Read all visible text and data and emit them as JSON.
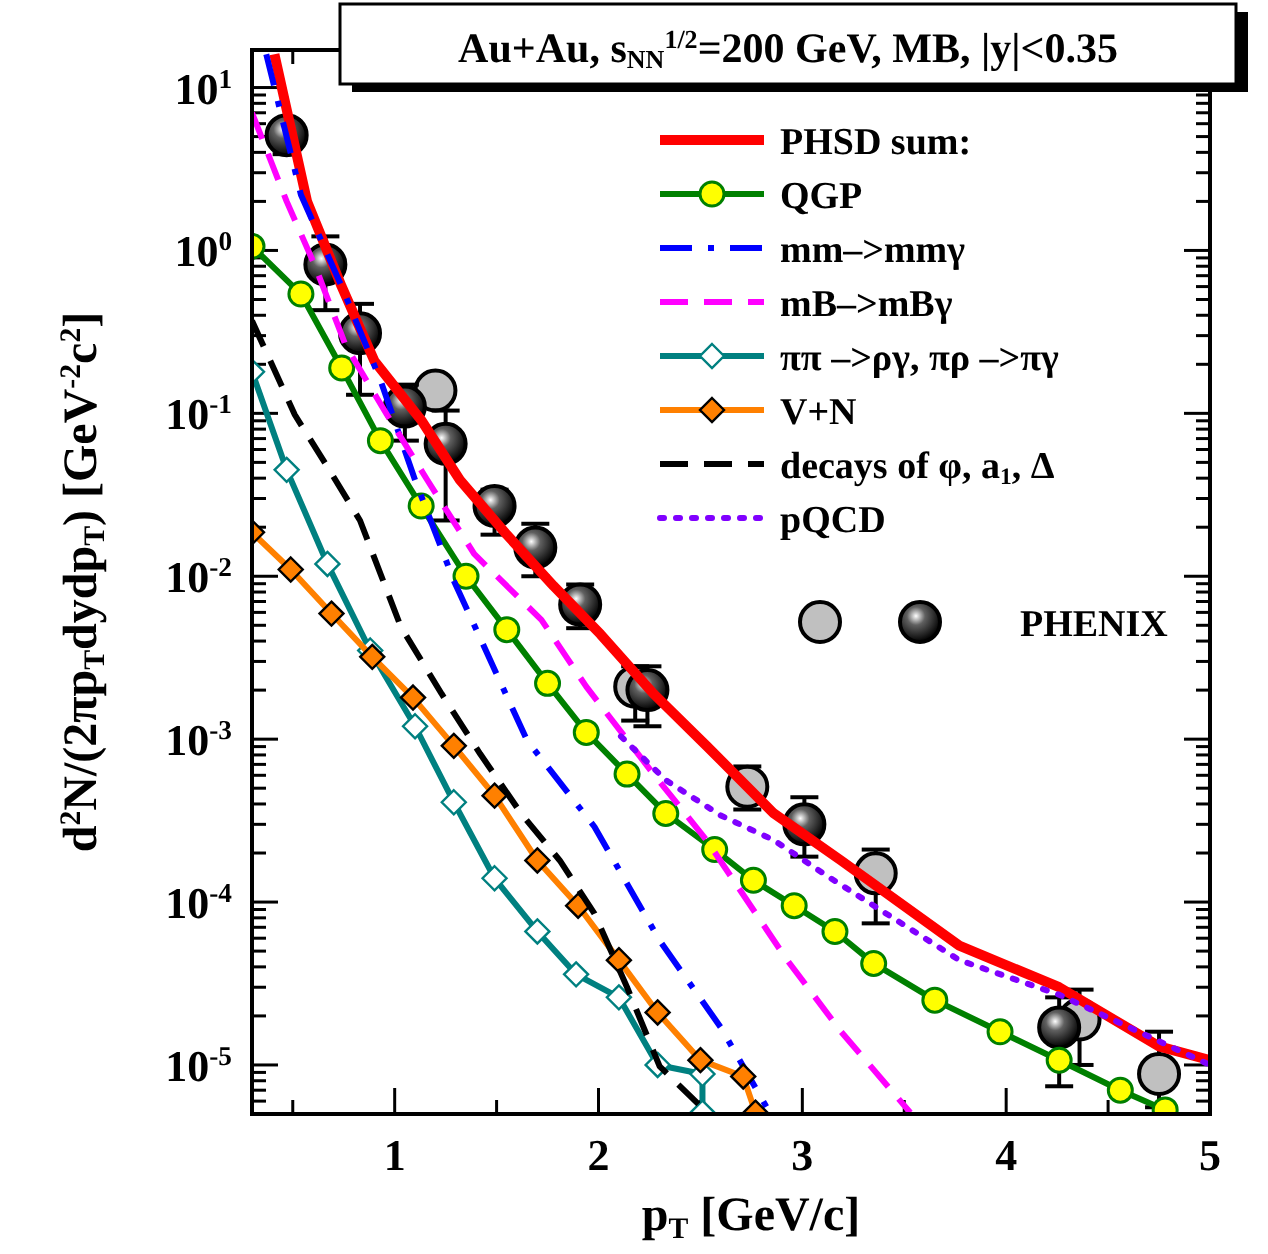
{
  "chart_data": {
    "type": "line",
    "title": "Au+Au, s$_{NN}$$^{1/2}$=200 GeV, MB, |y|<0.35",
    "xlabel": "p$_{T}$ [GeV/c]",
    "ylabel": "d$^{2}$N/(2πp$_{T}$dydp$_{T}$)  [GeV$^{-2}$c$^{2}$]",
    "log": "y",
    "legend": "top right",
    "xlim": [
      0.3,
      5.0
    ],
    "xticks": [
      {
        "value": 0.5,
        "label": null
      },
      1,
      {
        "value": 1.5,
        "label": null
      },
      2,
      {
        "value": 2.5,
        "label": null
      },
      3,
      {
        "value": 3.5,
        "label": null
      },
      4,
      {
        "value": 4.5,
        "label": null
      },
      5
    ],
    "ylim": [
      5e-06,
      17
    ],
    "yticks": [
      {
        "value": 6e-06,
        "label": null
      },
      {
        "value": 7e-06,
        "label": null
      },
      {
        "value": 8e-06,
        "label": null
      },
      {
        "value": 9e-06,
        "label": null
      },
      {
        "value": 1e-05,
        "label": "10$^{-5}$"
      },
      {
        "value": 2e-05,
        "label": null
      },
      {
        "value": 3e-05,
        "label": null
      },
      {
        "value": 4e-05,
        "label": null
      },
      {
        "value": 5e-05,
        "label": null
      },
      {
        "value": 6e-05,
        "label": null
      },
      {
        "value": 7e-05,
        "label": null
      },
      {
        "value": 8e-05,
        "label": null
      },
      {
        "value": 9e-05,
        "label": null
      },
      {
        "value": 0.0001,
        "label": "10$^{-4}$"
      },
      {
        "value": 0.0002,
        "label": null
      },
      {
        "value": 0.0003,
        "label": null
      },
      {
        "value": 0.0004,
        "label": null
      },
      {
        "value": 0.0005,
        "label": null
      },
      {
        "value": 0.0006,
        "label": null
      },
      {
        "value": 0.0007,
        "label": null
      },
      {
        "value": 0.0008,
        "label": null
      },
      {
        "value": 0.0009,
        "label": null
      },
      {
        "value": 0.001,
        "label": "10$^{-3}$"
      },
      {
        "value": 0.002,
        "label": null
      },
      {
        "value": 0.003,
        "label": null
      },
      {
        "value": 0.004,
        "label": null
      },
      {
        "value": 0.005,
        "label": null
      },
      {
        "value": 0.006,
        "label": null
      },
      {
        "value": 0.007,
        "label": null
      },
      {
        "value": 0.008,
        "label": null
      },
      {
        "value": 0.009,
        "label": null
      },
      {
        "value": 0.01,
        "label": "10$^{-2}$"
      },
      {
        "value": 0.02,
        "label": null
      },
      {
        "value": 0.03,
        "label": null
      },
      {
        "value": 0.04,
        "label": null
      },
      {
        "value": 0.05,
        "label": null
      },
      {
        "value": 0.06,
        "label": null
      },
      {
        "value": 0.07,
        "label": null
      },
      {
        "value": 0.08,
        "label": null
      },
      {
        "value": 0.09,
        "label": null
      },
      {
        "value": 0.1,
        "label": "10$^{-1}$"
      },
      {
        "value": 0.2,
        "label": null
      },
      {
        "value": 0.3,
        "label": null
      },
      {
        "value": 0.4,
        "label": null
      },
      {
        "value": 0.5,
        "label": null
      },
      {
        "value": 0.6,
        "label": null
      },
      {
        "value": 0.7,
        "label": null
      },
      {
        "value": 0.8,
        "label": null
      },
      {
        "value": 0.9,
        "label": null
      },
      {
        "value": 1,
        "label": "10$^{0}$"
      },
      {
        "value": 2,
        "label": null
      },
      {
        "value": 3,
        "label": null
      },
      {
        "value": 4,
        "label": null
      },
      {
        "value": 5,
        "label": null
      },
      {
        "value": 6,
        "label": null
      },
      {
        "value": 7,
        "label": null
      },
      {
        "value": 8,
        "label": null
      },
      {
        "value": 9,
        "label": null
      },
      {
        "value": 10,
        "label": "10$^{1}$"
      }
    ],
    "series": [
      {
        "name": "PHSD sum:",
        "color": "#ff0000",
        "line_style": "solid",
        "marker": "none",
        "x": [
          0.41,
          0.57,
          0.74,
          0.9,
          1.13,
          1.32,
          1.55,
          1.78,
          2.01,
          2.27,
          2.53,
          2.86,
          3.19,
          3.77,
          4.26,
          4.75,
          5.0
        ],
        "values": [
          16,
          2.0,
          0.6,
          0.21,
          0.091,
          0.039,
          0.018,
          0.0087,
          0.0044,
          0.0019,
          0.00091,
          0.00035,
          0.00018,
          5.4e-05,
          3e-05,
          1.3e-05,
          1.07e-05
        ]
      },
      {
        "name": "QGP",
        "color": "#008000",
        "line_style": "solid",
        "marker": "circle",
        "x": [
          0.3,
          0.54,
          0.74,
          0.93,
          1.13,
          1.35,
          1.55,
          1.75,
          1.94,
          2.14,
          2.33,
          2.57,
          2.76,
          2.96,
          3.16,
          3.35,
          3.65,
          3.97,
          4.26,
          4.56,
          4.78
        ],
        "values": [
          1.06,
          0.54,
          0.19,
          0.068,
          0.027,
          0.01,
          0.0047,
          0.0022,
          0.0011,
          0.00061,
          0.00035,
          0.00021,
          0.000136,
          9.5e-05,
          6.6e-05,
          4.2e-05,
          2.5e-05,
          1.6e-05,
          1.07e-05,
          7e-06,
          5.3e-06
        ]
      },
      {
        "name": "mm–>mmγ",
        "color": "#0000ff",
        "line_style": "dashdot",
        "marker": "none",
        "x": [
          0.37,
          0.54,
          0.74,
          0.93,
          1.1,
          1.29,
          1.65,
          1.98,
          2.3,
          2.6,
          2.84
        ],
        "values": [
          16,
          2.2,
          0.6,
          0.16,
          0.039,
          0.0094,
          0.00098,
          0.00029,
          5.8e-05,
          1.7e-05,
          5.1e-06
        ]
      },
      {
        "name": "mB–>mBγ",
        "color": "#ff00ff",
        "line_style": "dashed",
        "marker": "none",
        "x": [
          0.3,
          0.47,
          0.61,
          0.76,
          0.96,
          1.16,
          1.39,
          1.72,
          1.94,
          2.27,
          2.53,
          2.92,
          3.19,
          3.53
        ],
        "values": [
          7.0,
          2.0,
          0.8,
          0.26,
          0.099,
          0.039,
          0.0137,
          0.0054,
          0.0021,
          0.00061,
          0.00024,
          4.5e-05,
          1.6e-05,
          5.1e-06
        ]
      },
      {
        "name": "ππ –>ργ, πρ –>πγ",
        "color": "#008080",
        "line_style": "solid",
        "marker": "diamond",
        "x": [
          0.3,
          0.47,
          0.67,
          0.88,
          1.1,
          1.29,
          1.49,
          1.7,
          1.89,
          2.1,
          2.29,
          2.51,
          2.51
        ],
        "values": [
          0.18,
          0.045,
          0.0119,
          0.0035,
          0.0012,
          0.00041,
          0.00014,
          6.6e-05,
          3.6e-05,
          2.6e-05,
          1e-05,
          8.8e-06,
          5.1e-06
        ]
      },
      {
        "name": "V+N",
        "color": "#ff8000",
        "line_style": "solid",
        "marker": "diamond",
        "x": [
          0.3,
          0.49,
          0.69,
          0.89,
          1.09,
          1.29,
          1.49,
          1.7,
          1.9,
          2.1,
          2.29,
          2.5,
          2.71,
          2.77
        ],
        "values": [
          0.0186,
          0.011,
          0.0059,
          0.0032,
          0.0018,
          0.00091,
          0.00045,
          0.00018,
          9.5e-05,
          4.4e-05,
          2.1e-05,
          1.07e-05,
          8.5e-06,
          5.1e-06
        ]
      },
      {
        "name": "decays of φ, a$_{1}$, Δ",
        "color": "#000000",
        "line_style": "dashed",
        "marker": "none",
        "x": [
          0.3,
          0.51,
          0.67,
          0.83,
          1.03,
          1.23,
          1.42,
          1.62,
          1.81,
          1.98,
          2.14,
          2.3,
          2.5
        ],
        "values": [
          0.37,
          0.098,
          0.047,
          0.022,
          0.0049,
          0.0019,
          0.00081,
          0.00035,
          0.00018,
          8.5e-05,
          3e-05,
          9.8e-06,
          5.6e-06
        ]
      },
      {
        "name": "pQCD",
        "color": "#8000ff",
        "line_style": "dotted",
        "marker": "none",
        "x": [
          2.11,
          2.33,
          2.6,
          2.86,
          3.12,
          3.77,
          4.26,
          5.0
        ],
        "values": [
          0.00104,
          0.00056,
          0.00034,
          0.00024,
          0.000145,
          4.4e-05,
          2.7e-05,
          1e-05
        ]
      },
      {
        "type": "scatter",
        "color": "#c0c0c0",
        "marker": "circle",
        "x": [
          1.2,
          2.18,
          2.73,
          3.36,
          4.36,
          4.75
        ],
        "values": [
          0.138,
          0.0021,
          0.00051,
          0.00015,
          1.9e-05,
          8.8e-06
        ],
        "errors": [
          [
            0.11,
            0.17
          ],
          [
            0.0013,
            0.0028
          ],
          [
            0.00037,
            0.00068
          ],
          [
            7.4e-05,
            0.00021
          ],
          [
            1e-05,
            2.9e-05
          ],
          [
            5.5e-06,
            1.6e-05
          ]
        ]
      },
      {
        "type": "scatter",
        "name": "PHENIX",
        "color": "#000000",
        "marker": "circle",
        "x": [
          0.47,
          0.66,
          0.83,
          1.05,
          1.25,
          1.49,
          1.69,
          1.91,
          2.24,
          3.01,
          4.26
        ],
        "values": [
          5.1,
          0.82,
          0.31,
          0.11,
          0.065,
          0.027,
          0.015,
          0.0067,
          0.002,
          0.0003,
          1.7e-05
        ],
        "errors": [
          [
            3.9,
            6.3
          ],
          [
            0.43,
            1.22
          ],
          [
            0.13,
            0.47
          ],
          [
            0.068,
            0.15
          ],
          [
            0.022,
            0.104
          ],
          [
            0.018,
            0.034
          ],
          [
            0.01,
            0.021
          ],
          [
            0.0048,
            0.0089
          ],
          [
            0.0012,
            0.0028
          ],
          [
            0.00019,
            0.00044
          ],
          [
            7.4e-06,
            2.6e-05
          ]
        ]
      }
    ]
  }
}
